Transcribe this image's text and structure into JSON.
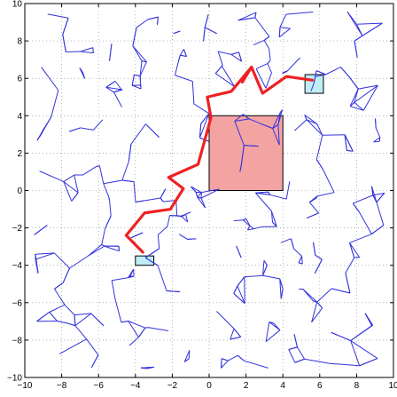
{
  "chart_data": {
    "type": "line",
    "title": "",
    "xlabel": "",
    "ylabel": "",
    "xlim": [
      -10,
      10
    ],
    "ylim": [
      -10,
      10
    ],
    "grid": true,
    "x_ticks": [
      -10,
      -8,
      -6,
      -4,
      -2,
      0,
      2,
      4,
      6,
      8,
      10
    ],
    "y_ticks": [
      -10,
      -8,
      -6,
      -4,
      -2,
      0,
      2,
      4,
      6,
      8,
      10
    ],
    "tick_labels_x": [
      "−10",
      "−8",
      "−6",
      "−4",
      "−2",
      "0",
      "2",
      "4",
      "6",
      "8",
      "10"
    ],
    "tick_labels_y": [
      "−10",
      "−8",
      "−6",
      "−4",
      "−2",
      "0",
      "2",
      "4",
      "6",
      "8",
      "10"
    ],
    "colors": {
      "graph_edges": "#3333dd",
      "path": "#ee2222",
      "obstacle_fill": "#f4a3a3",
      "region_fill": "#bfeef5",
      "grid": "#888888",
      "axes": "#000000"
    },
    "obstacle_rect": {
      "x0": 0,
      "y0": 0,
      "x1": 4,
      "y1": 4
    },
    "start_region": {
      "x0": -4,
      "y0": -4,
      "x1": -3,
      "y1": -3.5
    },
    "goal_region": {
      "x0": 5.2,
      "y0": 5.2,
      "x1": 6.2,
      "y1": 6.2
    },
    "path": [
      [
        -3.6,
        -3.3
      ],
      [
        -4.5,
        -2.4
      ],
      [
        -3.5,
        -1.2
      ],
      [
        -2.1,
        -1.0
      ],
      [
        -1.4,
        0.1
      ],
      [
        -2.2,
        0.7
      ],
      [
        -0.6,
        1.4
      ],
      [
        0.1,
        3.9
      ],
      [
        -0.1,
        5.0
      ],
      [
        1.2,
        5.3
      ],
      [
        2.3,
        6.6
      ],
      [
        2.9,
        5.2
      ],
      [
        4.2,
        6.1
      ],
      [
        5.6,
        5.9
      ]
    ],
    "path_branch": [
      [
        2.3,
        6.6
      ],
      [
        1.8,
        5.8
      ]
    ],
    "edge_network_note": ""
  }
}
